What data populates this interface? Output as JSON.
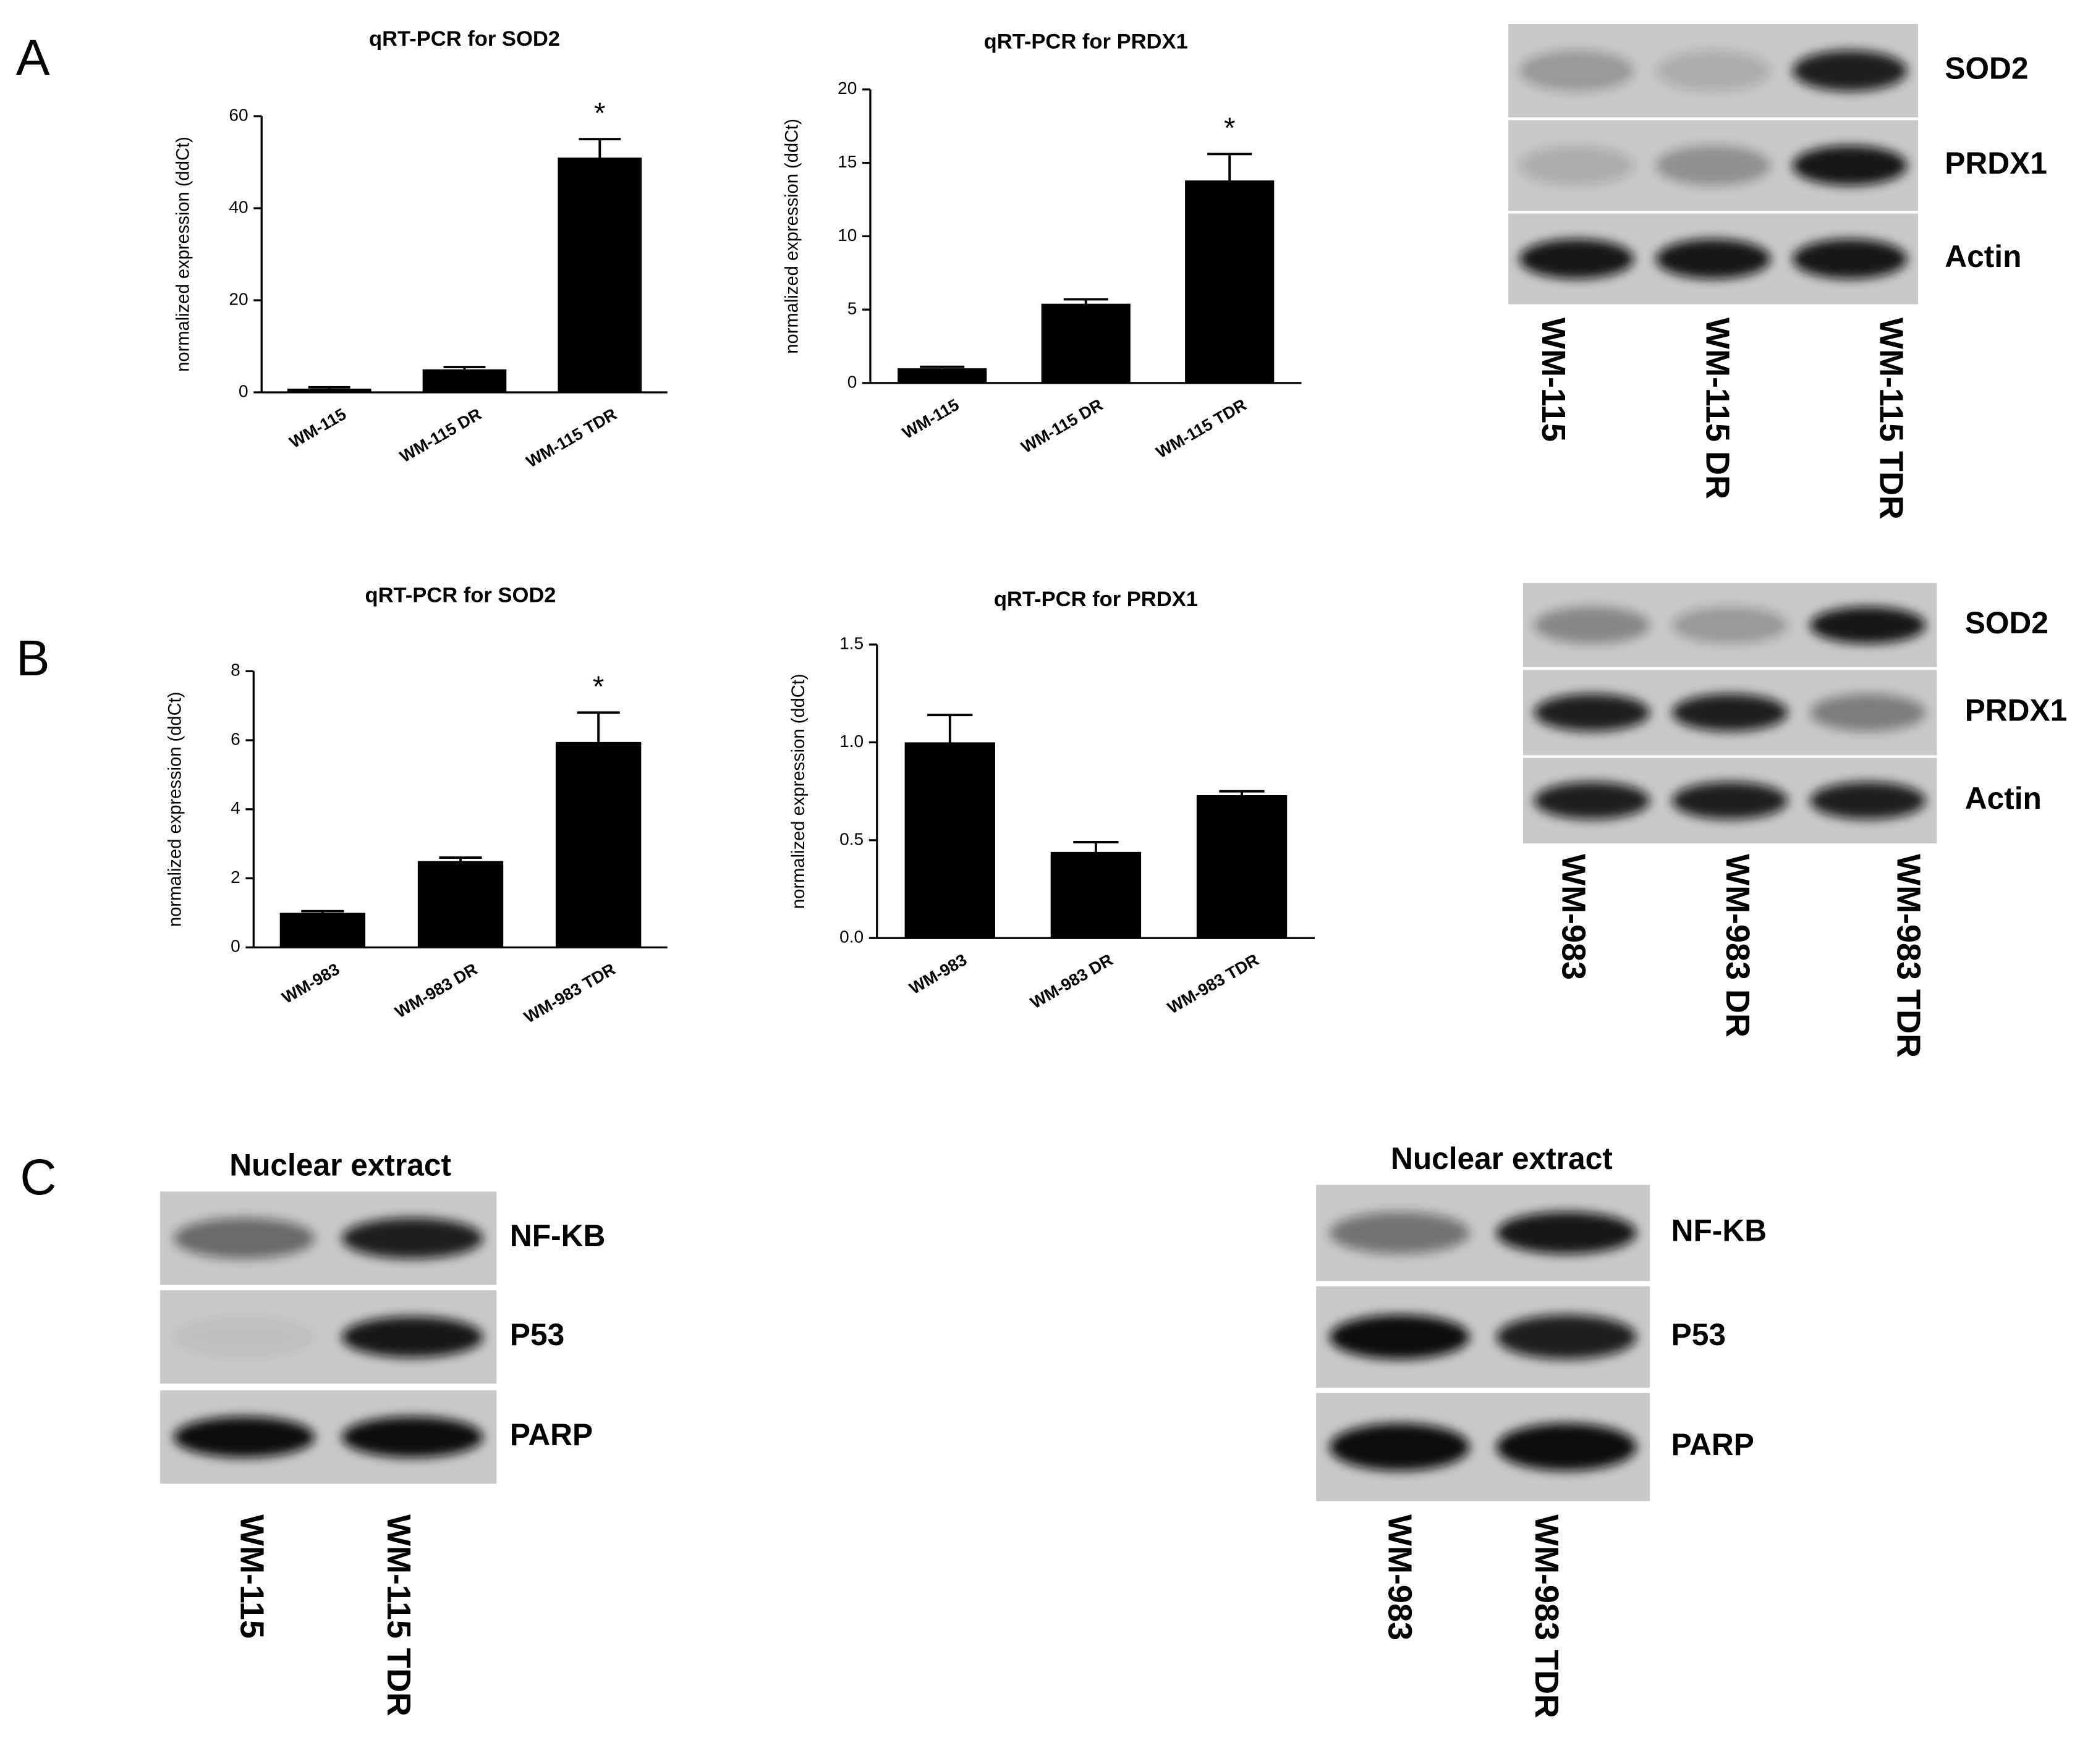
{
  "panels": [
    "A",
    "B",
    "C"
  ],
  "chart_data": [
    {
      "type": "bar",
      "title": "qRT-PCR for SOD2",
      "ylabel": "normalized expression (ddCt)",
      "categories": [
        "WM-115",
        "WM-115 DR",
        "WM-115 TDR"
      ],
      "values": [
        0.8,
        5,
        51
      ],
      "errors": [
        0.3,
        0.5,
        4
      ],
      "annotations": [
        null,
        null,
        "*"
      ],
      "color": "#000000",
      "ylim": [
        0,
        60
      ],
      "yticks": [
        0,
        20,
        40,
        60
      ]
    },
    {
      "type": "bar",
      "title": "qRT-PCR for PRDX1",
      "ylabel": "normalized expression (ddCt)",
      "categories": [
        "WM-115",
        "WM-115 DR",
        "WM-115 TDR"
      ],
      "values": [
        1,
        5.4,
        13.8
      ],
      "errors": [
        0.1,
        0.3,
        1.8
      ],
      "annotations": [
        null,
        null,
        "*"
      ],
      "color": "#000000",
      "ylim": [
        0,
        20
      ],
      "yticks": [
        0,
        5,
        10,
        15,
        20
      ]
    },
    {
      "type": "bar",
      "title": "qRT-PCR for SOD2",
      "ylabel": "normalized expression (ddCt)",
      "categories": [
        "WM-983",
        "WM-983 DR",
        "WM-983 TDR"
      ],
      "values": [
        1,
        2.5,
        5.95
      ],
      "errors": [
        0.05,
        0.1,
        0.85
      ],
      "annotations": [
        null,
        null,
        "*"
      ],
      "color": "#000000",
      "ylim": [
        0,
        8
      ],
      "yticks": [
        0,
        2,
        4,
        6,
        8
      ]
    },
    {
      "type": "bar",
      "title": "qRT-PCR for PRDX1",
      "ylabel": "normalized expression (ddCt)",
      "categories": [
        "WM-983",
        "WM-983 DR",
        "WM-983 TDR"
      ],
      "values": [
        1.0,
        0.44,
        0.73
      ],
      "errors": [
        0.14,
        0.05,
        0.02
      ],
      "color": "#000000",
      "ylim": [
        0,
        1.5
      ],
      "yticks": [
        {
          "value": 0,
          "label": "0.0"
        },
        {
          "value": 0.5,
          "label": "0.5"
        },
        {
          "value": 1,
          "label": "1.0"
        },
        {
          "value": 1.5,
          "label": "1.5"
        }
      ]
    }
  ],
  "blots": [
    {
      "rows": [
        "SOD2",
        "PRDX1",
        "Actin"
      ],
      "lanes": [
        "WM-115",
        "WM-115 DR",
        "WM-115 TDR"
      ]
    },
    {
      "rows": [
        "SOD2",
        "PRDX1",
        "Actin"
      ],
      "lanes": [
        "WM-983",
        "WM-983 DR",
        "WM-983 TDR"
      ]
    },
    {
      "title": "Nuclear extract",
      "rows": [
        "NF-KB",
        "P53",
        "PARP"
      ],
      "lanes": [
        "WM-115",
        "WM-115 TDR"
      ]
    },
    {
      "title": "Nuclear extract",
      "rows": [
        "NF-KB",
        "P53",
        "PARP"
      ],
      "lanes": [
        "WM-983",
        "WM-983 TDR"
      ]
    }
  ]
}
